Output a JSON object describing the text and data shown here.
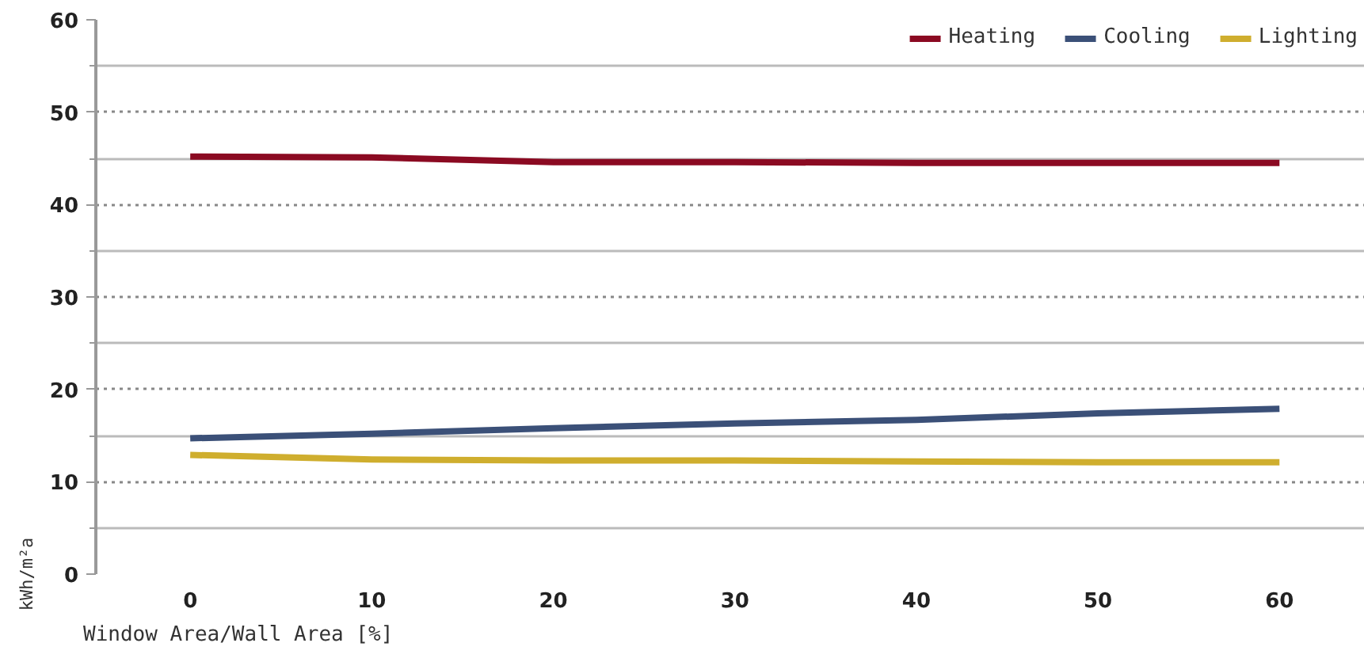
{
  "chart_data": {
    "type": "line",
    "xlabel": "Window Area/Wall Area [%]",
    "ylabel": "kWh/m²a",
    "x": [
      0,
      10,
      20,
      30,
      40,
      50,
      60
    ],
    "series": [
      {
        "name": "Heating",
        "color": "#8b0a22",
        "values": [
          45.2,
          45.1,
          44.6,
          44.6,
          44.5,
          44.5,
          44.5
        ]
      },
      {
        "name": "Cooling",
        "color": "#3b5078",
        "values": [
          14.7,
          15.2,
          15.8,
          16.3,
          16.7,
          17.4,
          17.9
        ]
      },
      {
        "name": "Lighting",
        "color": "#cfae2e",
        "values": [
          12.9,
          12.4,
          12.3,
          12.3,
          12.2,
          12.1,
          12.1
        ]
      }
    ],
    "xlim": [
      -5.2,
      64.7
    ],
    "xticks": [
      0,
      10,
      20,
      30,
      40,
      50,
      60
    ],
    "ylim": [
      0,
      60
    ],
    "yticks": [
      0,
      {
        "value": 5,
        "label": null
      },
      10,
      {
        "value": 15,
        "label": null
      },
      20,
      {
        "value": 25,
        "label": null
      },
      30,
      {
        "value": 35,
        "label": null
      },
      40,
      {
        "value": 45,
        "label": null
      },
      50,
      {
        "value": 55,
        "label": null
      },
      60
    ],
    "grid": "y",
    "legend": "top right",
    "marker": "none",
    "line_style": "solid"
  }
}
